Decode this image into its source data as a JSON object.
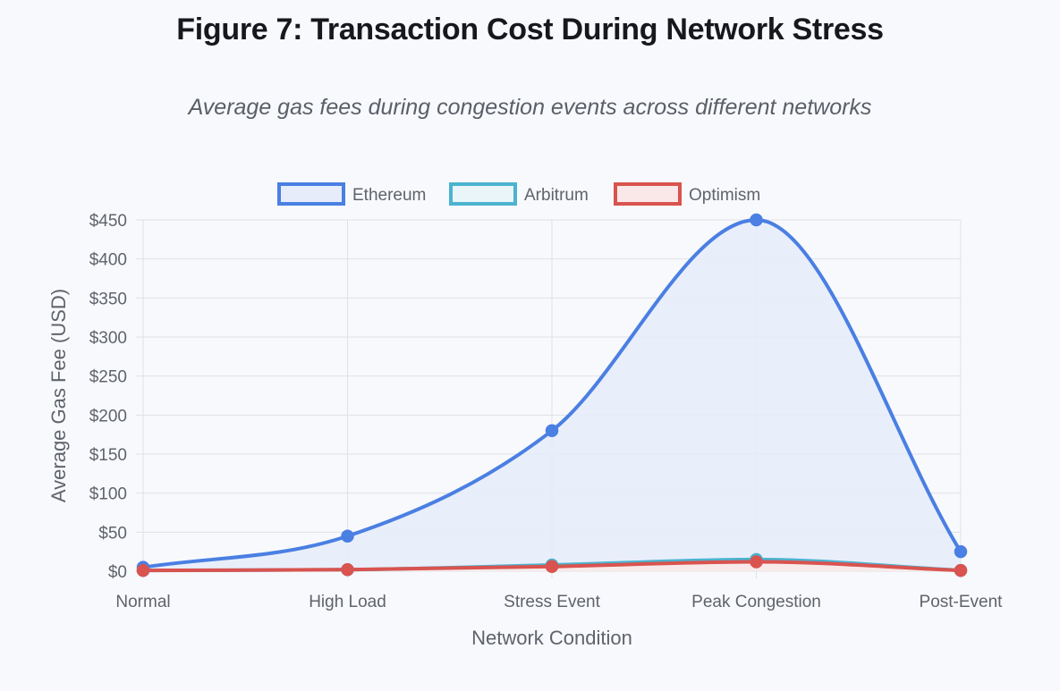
{
  "figure": {
    "title": "Figure 7: Transaction Cost During Network Stress",
    "subtitle": "Average gas fees during congestion events across different networks"
  },
  "chart_data": {
    "type": "line",
    "categories": [
      "Normal",
      "High Load",
      "Stress Event",
      "Peak Congestion",
      "Post-Event"
    ],
    "series": [
      {
        "name": "Ethereum",
        "values": [
          5,
          45,
          180,
          450,
          25
        ],
        "color": "#4a7fe3",
        "fill": "#e6ecfa"
      },
      {
        "name": "Arbitrum",
        "values": [
          1,
          2,
          8,
          15,
          1
        ],
        "color": "#4bb3cf",
        "fill": "#e9f5f8"
      },
      {
        "name": "Optimism",
        "values": [
          1,
          2,
          6,
          12,
          1
        ],
        "color": "#d9534f",
        "fill": "#fae8e8"
      }
    ],
    "xlabel": "Network Condition",
    "ylabel": "Average Gas Fee (USD)",
    "ylim": [
      0,
      450
    ],
    "yticks": [
      0,
      50,
      100,
      150,
      200,
      250,
      300,
      350,
      400,
      450
    ],
    "ytick_labels": [
      "$0",
      "$50",
      "$100",
      "$150",
      "$200",
      "$250",
      "$300",
      "$350",
      "$400",
      "$450"
    ],
    "legend_position": "top-center",
    "grid": true
  }
}
